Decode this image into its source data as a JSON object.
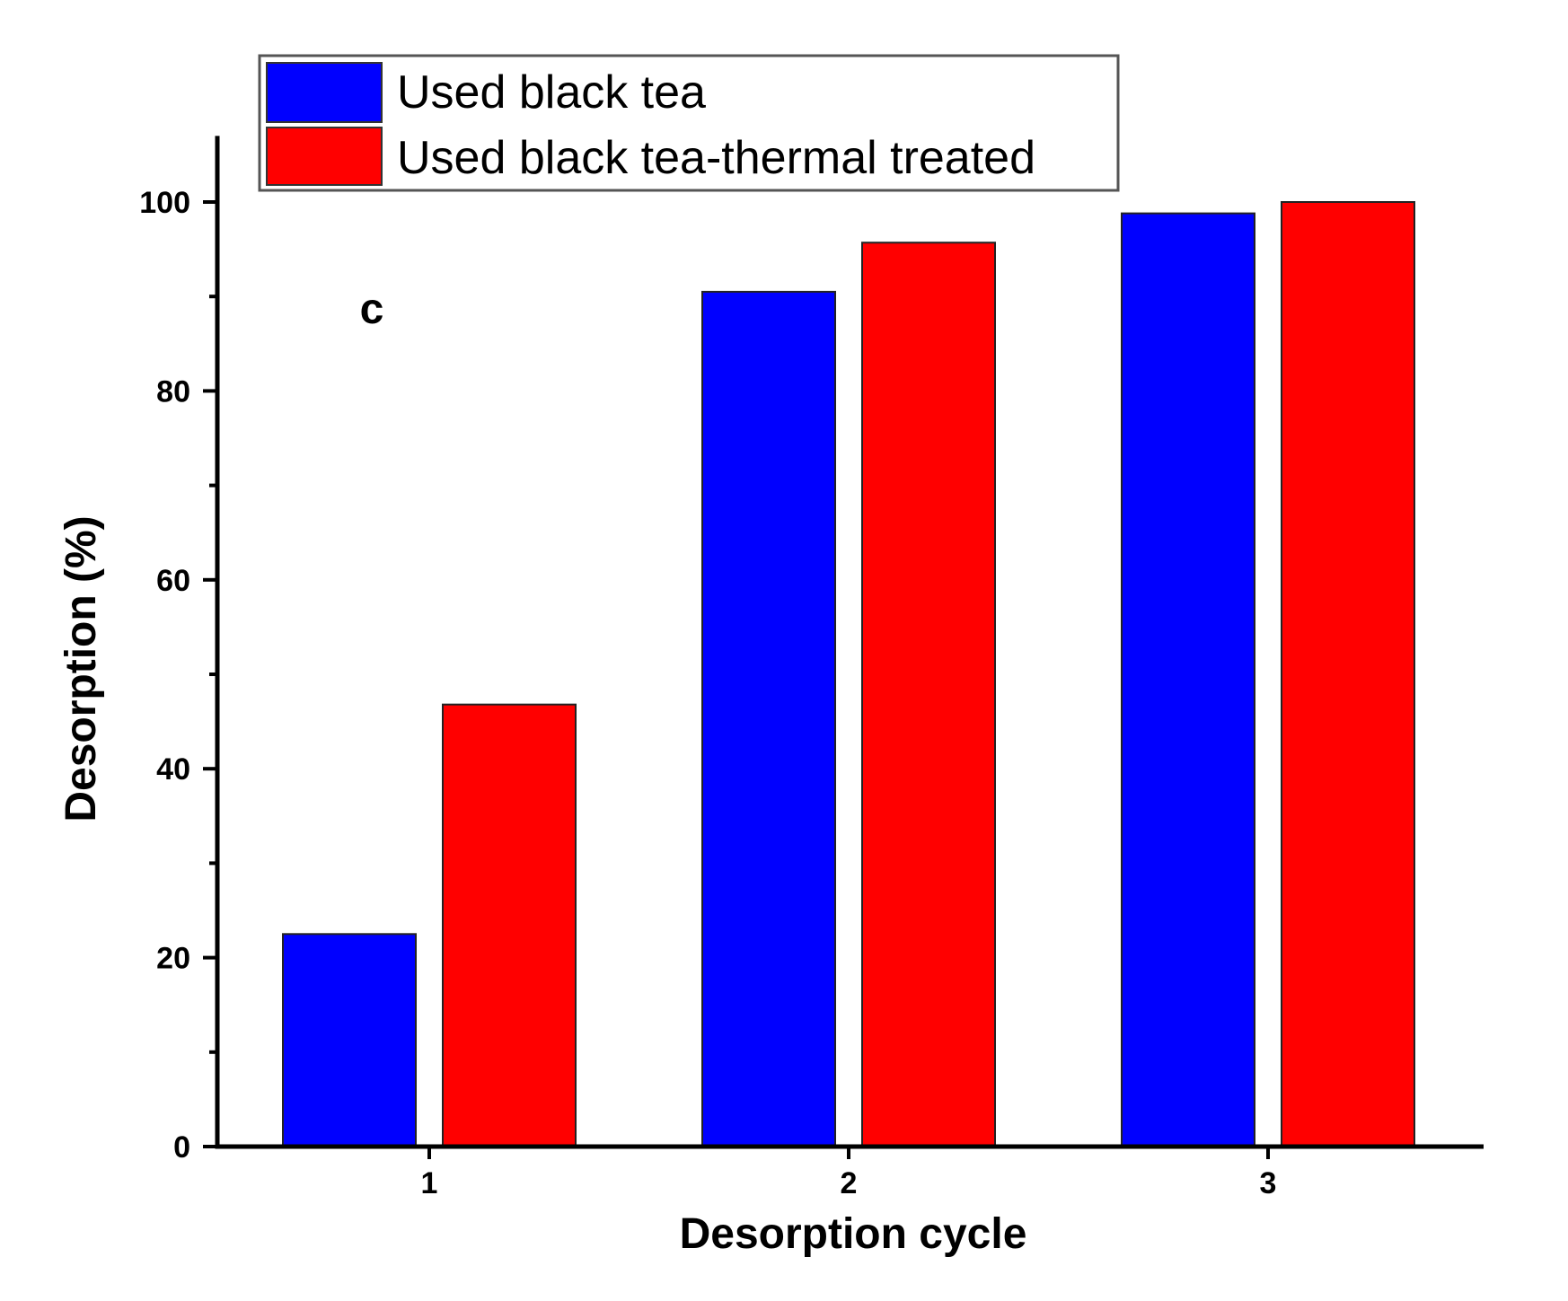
{
  "chart_data": {
    "type": "bar",
    "panel_label": "c",
    "title": "",
    "xlabel": "Desorption cycle",
    "ylabel": "Desorption (%)",
    "categories": [
      "1",
      "2",
      "3"
    ],
    "ylim": [
      0,
      107
    ],
    "yticks": [
      0,
      20,
      40,
      60,
      80,
      100
    ],
    "yminor_step": 10,
    "legend_position": "top-left",
    "series": [
      {
        "name": "Used black tea",
        "color": "#0000ff",
        "values": [
          22.5,
          90.5,
          98.8
        ]
      },
      {
        "name": "Used black tea-thermal treated",
        "color": "#ff0000",
        "values": [
          46.8,
          95.7,
          100.0
        ]
      }
    ]
  }
}
